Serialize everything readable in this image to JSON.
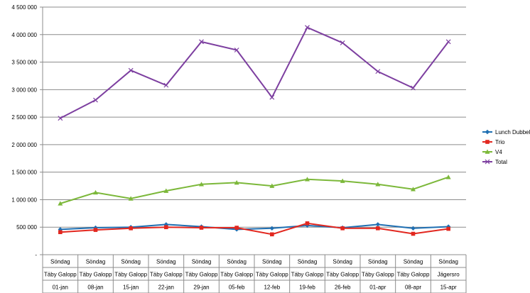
{
  "chart_data": {
    "type": "line",
    "title": "",
    "xlabel": "",
    "ylabel": "",
    "ylim": [
      0,
      4500000
    ],
    "yticks": [
      {
        "value": 0,
        "label": "-"
      },
      {
        "value": 500000,
        "label": "500 000"
      },
      {
        "value": 1000000,
        "label": "1 000 000"
      },
      {
        "value": 1500000,
        "label": "1 500 000"
      },
      {
        "value": 2000000,
        "label": "2 000 000"
      },
      {
        "value": 2500000,
        "label": "2 500 000"
      },
      {
        "value": 3000000,
        "label": "3 000 000"
      },
      {
        "value": 3500000,
        "label": "3 500 000"
      },
      {
        "value": 4000000,
        "label": "4 000 000"
      },
      {
        "value": 4500000,
        "label": "4 500 000"
      }
    ],
    "grid": "horizontal",
    "legend_position": "right",
    "categories": [
      {
        "day": "Söndag",
        "track": "Täby Galopp",
        "date": "01-jan"
      },
      {
        "day": "Söndag",
        "track": "Täby Galopp",
        "date": "08-jan"
      },
      {
        "day": "Söndag",
        "track": "Täby Galopp",
        "date": "15-jan"
      },
      {
        "day": "Söndag",
        "track": "Täby Galopp",
        "date": "22-jan"
      },
      {
        "day": "Söndag",
        "track": "Täby Galopp",
        "date": "29-jan"
      },
      {
        "day": "Söndag",
        "track": "Täby Galopp",
        "date": "05-feb"
      },
      {
        "day": "Söndag",
        "track": "Täby Galopp",
        "date": "12-feb"
      },
      {
        "day": "Söndag",
        "track": "Täby Galopp",
        "date": "19-feb"
      },
      {
        "day": "Söndag",
        "track": "Täby Galopp",
        "date": "26-feb"
      },
      {
        "day": "Söndag",
        "track": "Täby Galopp",
        "date": "01-apr"
      },
      {
        "day": "Söndag",
        "track": "Täby Galopp",
        "date": "08-apr"
      },
      {
        "day": "Söndag",
        "track": "Jägersro",
        "date": "15-apr"
      }
    ],
    "series": [
      {
        "name": "Lunch Dubbel",
        "color": "#1f6fb2",
        "marker": "diamond",
        "values": [
          460000,
          490000,
          500000,
          550000,
          510000,
          460000,
          480000,
          530000,
          490000,
          550000,
          480000,
          510000
        ]
      },
      {
        "name": "Trio",
        "color": "#e2271f",
        "marker": "square",
        "values": [
          410000,
          450000,
          480000,
          500000,
          490000,
          490000,
          370000,
          570000,
          480000,
          480000,
          380000,
          470000
        ]
      },
      {
        "name": "V4",
        "color": "#7cb83a",
        "marker": "triangle",
        "values": [
          930000,
          1130000,
          1020000,
          1160000,
          1280000,
          1310000,
          1250000,
          1370000,
          1340000,
          1280000,
          1190000,
          1410000
        ]
      },
      {
        "name": "Total",
        "color": "#7d3fa0",
        "marker": "x",
        "values": [
          2480000,
          2810000,
          3350000,
          3080000,
          3870000,
          3720000,
          2860000,
          4130000,
          3850000,
          3330000,
          3030000,
          3870000
        ]
      }
    ]
  }
}
